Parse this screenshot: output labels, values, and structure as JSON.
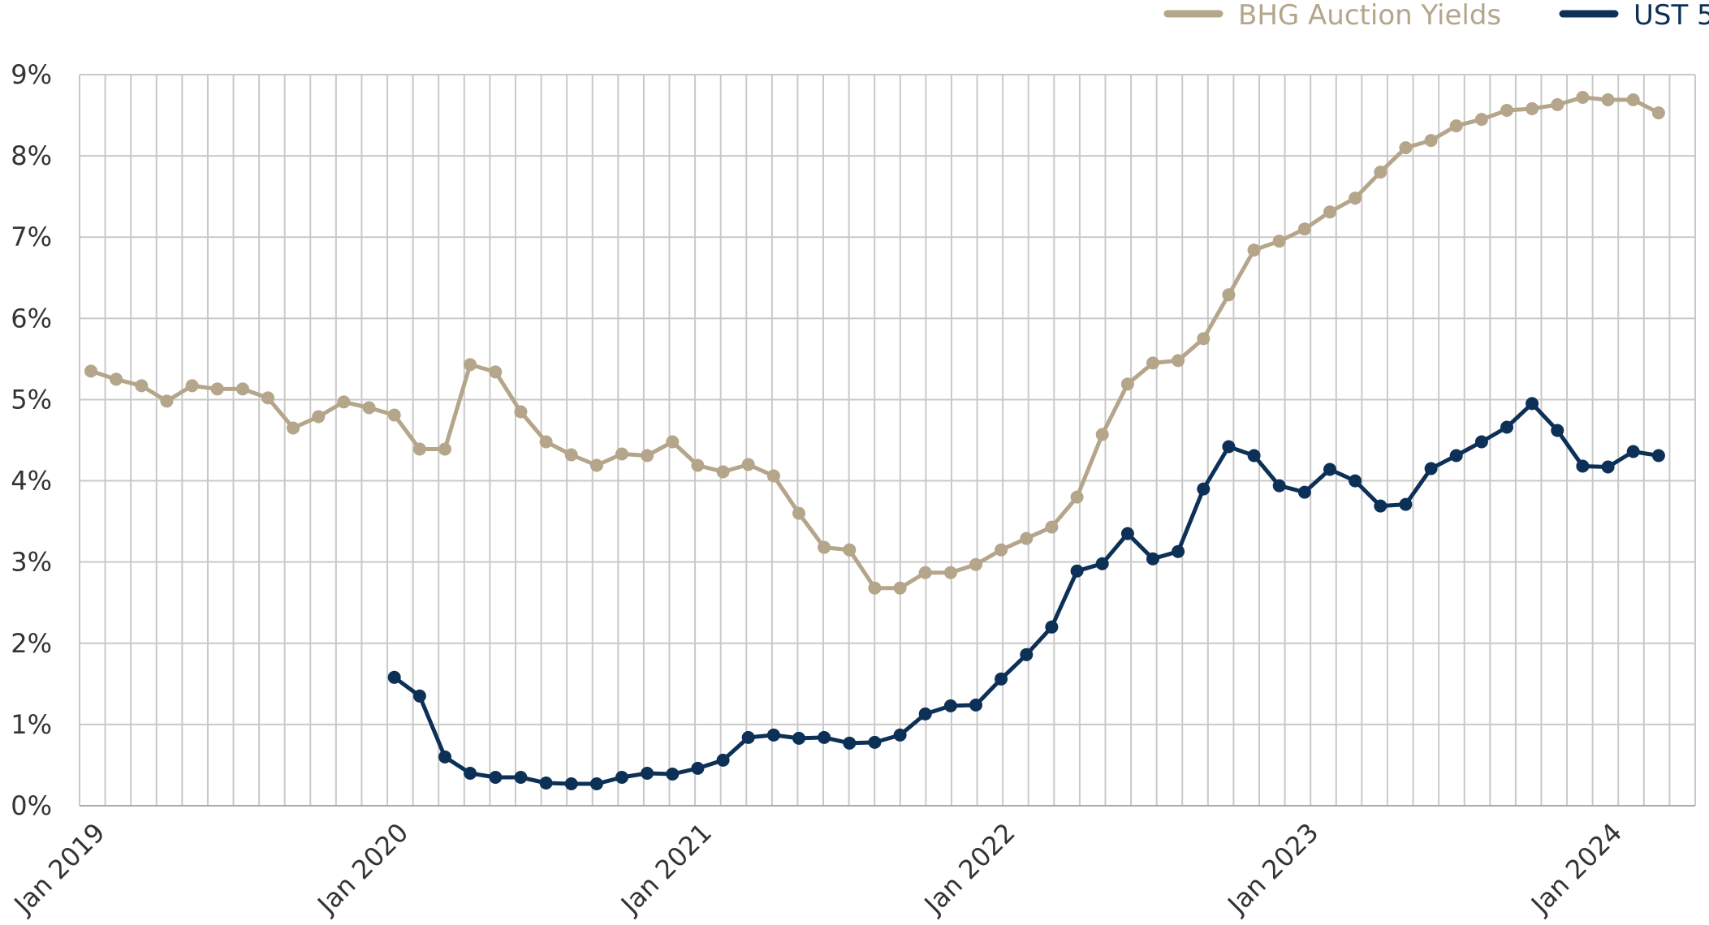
{
  "chart_data": {
    "type": "line",
    "title": "",
    "xlabel": "",
    "ylabel": "",
    "ylim": [
      0,
      9
    ],
    "y_tick_labels": [
      "0%",
      "1%",
      "2%",
      "3%",
      "4%",
      "5%",
      "6%",
      "7%",
      "8%",
      "9%"
    ],
    "x_tick_labels": [
      "Jan 2019",
      "Jan 2020",
      "Jan 2021",
      "Jan 2022",
      "Jan 2023",
      "Jan 2024"
    ],
    "x_range": [
      "Jan 2019",
      "Mar 2024"
    ],
    "grid": true,
    "legend_position": "top-right",
    "series": [
      {
        "name": "BHG Auction Yields",
        "color": "#b4a58b",
        "start": "Jan 2019",
        "values": [
          5.35,
          5.25,
          5.17,
          4.98,
          5.17,
          5.13,
          5.13,
          5.02,
          4.65,
          4.79,
          4.97,
          4.9,
          4.81,
          4.39,
          4.39,
          5.43,
          5.34,
          4.85,
          4.48,
          4.32,
          4.19,
          4.33,
          4.31,
          4.48,
          4.19,
          4.11,
          4.2,
          4.06,
          3.6,
          3.18,
          3.15,
          2.68,
          2.68,
          2.87,
          2.87,
          2.97,
          3.15,
          3.29,
          3.43,
          3.8,
          4.57,
          5.19,
          5.45,
          5.48,
          5.75,
          6.29,
          6.84,
          6.95,
          7.1,
          7.31,
          7.48,
          7.8,
          8.1,
          8.19,
          8.37,
          8.45,
          8.56,
          8.58,
          8.63,
          8.72,
          8.69,
          8.69,
          8.53
        ]
      },
      {
        "name": "UST 5",
        "color": "#0d3057",
        "start": "Jan 2020",
        "values": [
          1.58,
          1.35,
          0.6,
          0.4,
          0.35,
          0.35,
          0.28,
          0.27,
          0.27,
          0.35,
          0.4,
          0.39,
          0.46,
          0.56,
          0.84,
          0.87,
          0.83,
          0.84,
          0.77,
          0.78,
          0.87,
          1.13,
          1.23,
          1.24,
          1.56,
          1.86,
          2.2,
          2.89,
          2.98,
          3.35,
          3.04,
          3.13,
          3.9,
          4.42,
          4.31,
          3.94,
          3.86,
          4.14,
          4.0,
          3.69,
          3.71,
          4.15,
          4.31,
          4.48,
          4.66,
          4.95,
          4.62,
          4.18,
          4.17,
          4.36,
          4.31
        ]
      }
    ]
  }
}
